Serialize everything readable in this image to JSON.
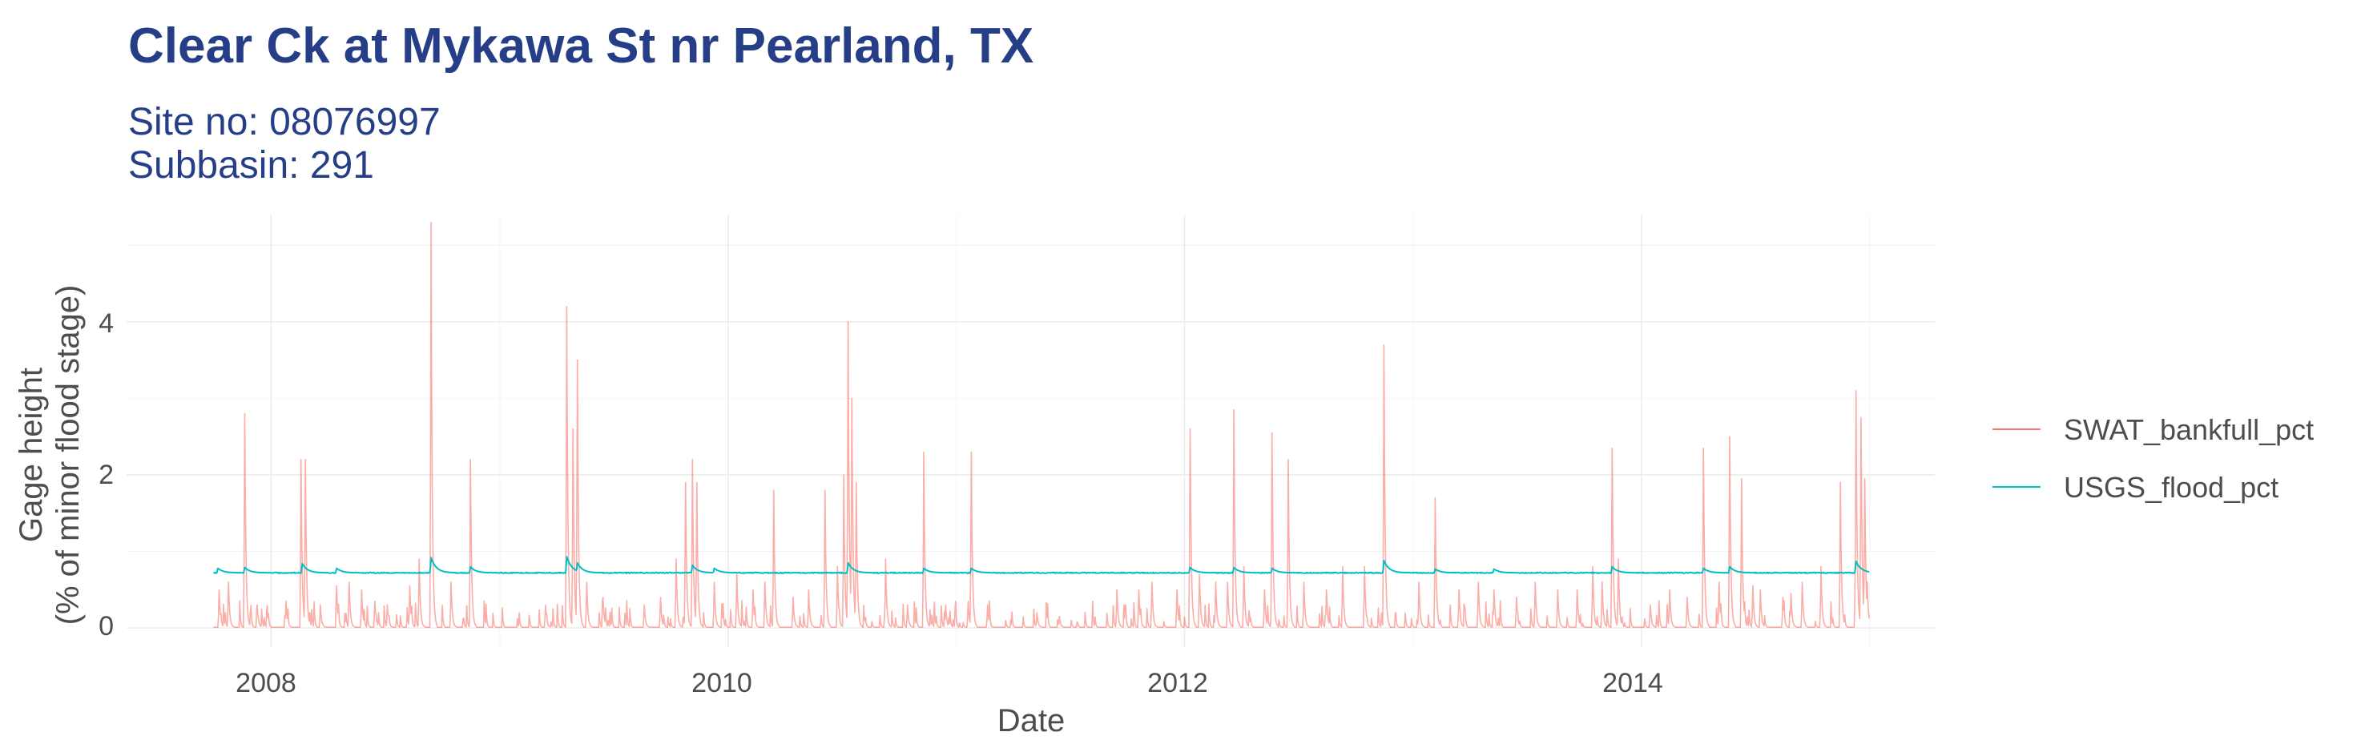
{
  "chart_data": {
    "type": "line",
    "title": "Clear Ck at Mykawa St nr Pearland, TX",
    "subtitle_lines": [
      "Site no: 08076997",
      "Subbasin: 291"
    ],
    "xlabel": "Date",
    "ylabel_lines": [
      "Gage height",
      "(% of minor flood stage)"
    ],
    "x_domain": [
      "2007-05-15",
      "2015-04-15"
    ],
    "ylim": [
      -0.25,
      5.4
    ],
    "x_tick_labels": [
      "2008",
      "2010",
      "2012",
      "2014"
    ],
    "y_tick_labels": [
      "0",
      "2",
      "4"
    ],
    "y_ticks": [
      0,
      2,
      4
    ],
    "grid": true,
    "legend_position": "right",
    "series": [
      {
        "name": "SWAT_bankfull_pct",
        "color": "#f8766d",
        "date_range": [
          "2007-10-01",
          "2014-12-31"
        ],
        "baseline": 0.01,
        "peaks": [
          [
            "2007-10-10",
            0.5
          ],
          [
            "2007-10-25",
            0.6
          ],
          [
            "2007-11-20",
            2.8
          ],
          [
            "2007-12-10",
            0.3
          ],
          [
            "2008-01-25",
            0.35
          ],
          [
            "2008-02-18",
            2.2
          ],
          [
            "2008-02-25",
            2.2
          ],
          [
            "2008-03-20",
            0.3
          ],
          [
            "2008-04-15",
            0.55
          ],
          [
            "2008-05-05",
            0.6
          ],
          [
            "2008-05-25",
            0.5
          ],
          [
            "2008-06-15",
            0.35
          ],
          [
            "2008-07-05",
            0.3
          ],
          [
            "2008-08-10",
            0.55
          ],
          [
            "2008-08-25",
            0.9
          ],
          [
            "2008-09-13",
            5.3
          ],
          [
            "2008-10-15",
            0.6
          ],
          [
            "2008-11-15",
            2.2
          ],
          [
            "2009-03-15",
            0.3
          ],
          [
            "2009-04-18",
            4.2
          ],
          [
            "2009-04-28",
            2.6
          ],
          [
            "2009-05-05",
            3.5
          ],
          [
            "2009-05-20",
            0.6
          ],
          [
            "2009-06-15",
            0.4
          ],
          [
            "2009-08-20",
            0.3
          ],
          [
            "2009-09-15",
            0.4
          ],
          [
            "2009-10-10",
            0.9
          ],
          [
            "2009-10-25",
            1.9
          ],
          [
            "2009-11-05",
            2.2
          ],
          [
            "2009-11-12",
            1.9
          ],
          [
            "2009-12-10",
            0.6
          ],
          [
            "2010-01-15",
            0.7
          ],
          [
            "2010-02-10",
            0.5
          ],
          [
            "2010-03-01",
            0.6
          ],
          [
            "2010-03-15",
            1.8
          ],
          [
            "2010-04-15",
            0.4
          ],
          [
            "2010-05-10",
            0.5
          ],
          [
            "2010-06-05",
            1.8
          ],
          [
            "2010-06-25",
            0.8
          ],
          [
            "2010-07-05",
            2.0
          ],
          [
            "2010-07-12",
            4.0
          ],
          [
            "2010-07-18",
            3.0
          ],
          [
            "2010-07-25",
            1.9
          ],
          [
            "2010-09-10",
            0.9
          ],
          [
            "2010-10-15",
            0.3
          ],
          [
            "2010-11-10",
            2.3
          ],
          [
            "2010-12-15",
            0.3
          ],
          [
            "2011-01-20",
            0.35
          ],
          [
            "2011-01-25",
            2.3
          ],
          [
            "2011-02-20",
            0.3
          ],
          [
            "2011-05-10",
            0.2
          ],
          [
            "2011-06-15",
            0.15
          ],
          [
            "2011-09-15",
            0.5
          ],
          [
            "2011-10-20",
            0.5
          ],
          [
            "2011-11-10",
            0.6
          ],
          [
            "2011-12-20",
            0.5
          ],
          [
            "2012-01-10",
            2.6
          ],
          [
            "2012-01-25",
            0.7
          ],
          [
            "2012-02-20",
            0.6
          ],
          [
            "2012-03-10",
            0.6
          ],
          [
            "2012-03-20",
            2.85
          ],
          [
            "2012-04-05",
            0.8
          ],
          [
            "2012-05-08",
            0.5
          ],
          [
            "2012-05-20",
            2.55
          ],
          [
            "2012-06-15",
            2.2
          ],
          [
            "2012-07-10",
            0.6
          ],
          [
            "2012-08-15",
            0.5
          ],
          [
            "2012-09-10",
            0.8
          ],
          [
            "2012-10-15",
            0.8
          ],
          [
            "2012-11-15",
            3.7
          ],
          [
            "2013-01-10",
            0.6
          ],
          [
            "2013-02-05",
            1.7
          ],
          [
            "2013-03-15",
            0.5
          ],
          [
            "2013-04-15",
            0.6
          ],
          [
            "2013-05-10",
            0.5
          ],
          [
            "2013-06-15",
            0.4
          ],
          [
            "2013-07-15",
            0.6
          ],
          [
            "2013-08-20",
            0.5
          ],
          [
            "2013-09-20",
            0.5
          ],
          [
            "2013-10-15",
            0.8
          ],
          [
            "2013-10-30",
            0.6
          ],
          [
            "2013-11-15",
            2.35
          ],
          [
            "2013-11-25",
            0.9
          ],
          [
            "2014-01-15",
            0.3
          ],
          [
            "2014-02-15",
            0.5
          ],
          [
            "2014-03-15",
            0.4
          ],
          [
            "2014-04-10",
            2.35
          ],
          [
            "2014-05-05",
            0.6
          ],
          [
            "2014-05-22",
            2.5
          ],
          [
            "2014-06-10",
            1.95
          ],
          [
            "2014-07-10",
            0.5
          ],
          [
            "2014-08-15",
            0.4
          ],
          [
            "2014-09-15",
            0.6
          ],
          [
            "2014-10-15",
            0.8
          ],
          [
            "2014-11-15",
            1.9
          ],
          [
            "2014-12-10",
            3.1
          ],
          [
            "2014-12-28",
            0.6
          ],
          [
            "2014-12-18",
            2.75
          ],
          [
            "2014-12-24",
            1.95
          ],
          [
            "2014-08-28",
            0.45
          ],
          [
            "2014-06-28",
            0.55
          ]
        ]
      },
      {
        "name": "USGS_flood_pct",
        "color": "#00bfc4",
        "date_range": [
          "2007-10-01",
          "2014-12-31"
        ],
        "baseline": 0.72,
        "peaks": [
          [
            "2007-10-08",
            0.78
          ],
          [
            "2007-11-20",
            0.79
          ],
          [
            "2008-02-20",
            0.84
          ],
          [
            "2008-04-15",
            0.78
          ],
          [
            "2008-09-13",
            0.92
          ],
          [
            "2008-11-15",
            0.8
          ],
          [
            "2009-04-18",
            0.93
          ],
          [
            "2009-05-05",
            0.85
          ],
          [
            "2009-11-05",
            0.82
          ],
          [
            "2009-12-10",
            0.78
          ],
          [
            "2010-07-12",
            0.85
          ],
          [
            "2010-11-10",
            0.78
          ],
          [
            "2011-01-25",
            0.78
          ],
          [
            "2012-01-10",
            0.79
          ],
          [
            "2012-03-20",
            0.79
          ],
          [
            "2012-05-20",
            0.78
          ],
          [
            "2012-11-15",
            0.88
          ],
          [
            "2013-02-05",
            0.77
          ],
          [
            "2013-05-10",
            0.77
          ],
          [
            "2013-11-15",
            0.8
          ],
          [
            "2014-04-10",
            0.78
          ],
          [
            "2014-05-22",
            0.8
          ],
          [
            "2014-12-10",
            0.87
          ],
          [
            "2014-12-18",
            0.78
          ]
        ]
      }
    ]
  }
}
